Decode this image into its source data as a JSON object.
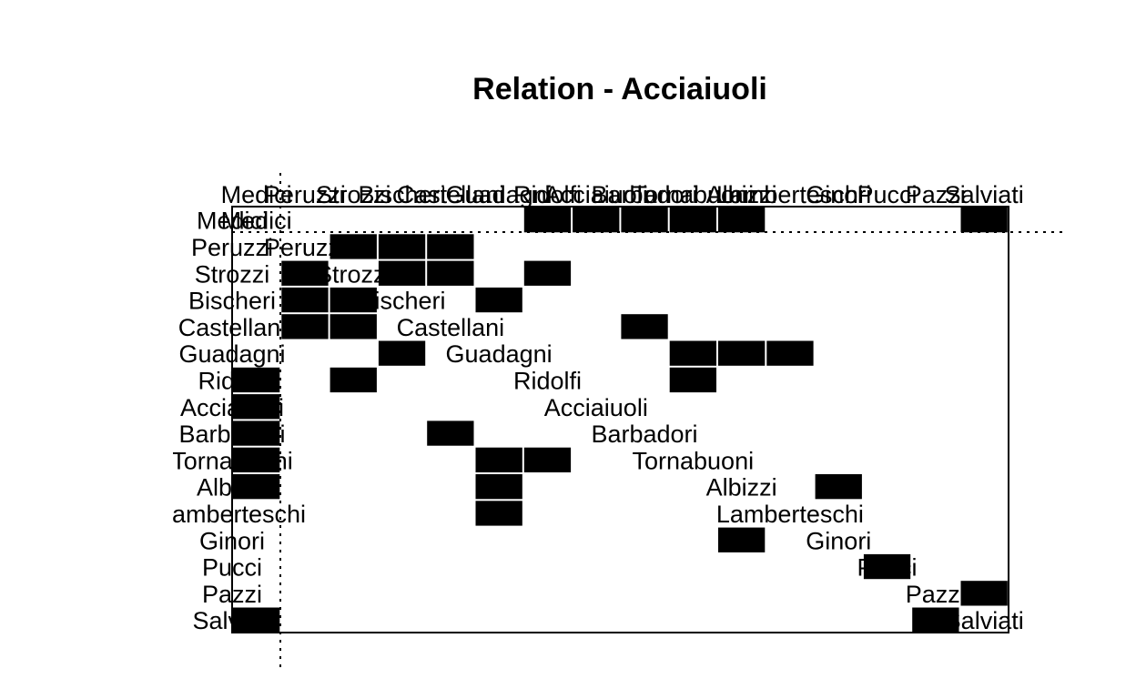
{
  "chart_data": {
    "type": "heatmap",
    "title": "Relation -  Acciaiuoli",
    "labels": [
      "Medici",
      "Peruzzi",
      "Strozzi",
      "Bischeri",
      "Castellani",
      "Guadagni",
      "Ridolfi",
      "Acciaiuoli",
      "Barbadori",
      "Tornabuoni",
      "Albizzi",
      "Lamberteschi",
      "Ginori",
      "Pucci",
      "Pazzi",
      "Salviati"
    ],
    "filled_cells": [
      [
        0,
        6
      ],
      [
        0,
        7
      ],
      [
        0,
        8
      ],
      [
        0,
        9
      ],
      [
        0,
        10
      ],
      [
        0,
        15
      ],
      [
        1,
        2
      ],
      [
        1,
        3
      ],
      [
        1,
        4
      ],
      [
        2,
        1
      ],
      [
        2,
        3
      ],
      [
        2,
        4
      ],
      [
        2,
        6
      ],
      [
        3,
        1
      ],
      [
        3,
        2
      ],
      [
        3,
        5
      ],
      [
        4,
        1
      ],
      [
        4,
        2
      ],
      [
        4,
        8
      ],
      [
        5,
        3
      ],
      [
        5,
        9
      ],
      [
        5,
        10
      ],
      [
        5,
        11
      ],
      [
        6,
        0
      ],
      [
        6,
        2
      ],
      [
        6,
        9
      ],
      [
        7,
        0
      ],
      [
        8,
        0
      ],
      [
        8,
        4
      ],
      [
        9,
        0
      ],
      [
        9,
        5
      ],
      [
        9,
        6
      ],
      [
        10,
        0
      ],
      [
        10,
        5
      ],
      [
        10,
        12
      ],
      [
        11,
        5
      ],
      [
        12,
        10
      ],
      [
        13,
        13
      ],
      [
        14,
        15
      ],
      [
        15,
        0
      ],
      [
        15,
        14
      ]
    ],
    "cell_color": "#000000",
    "grid": false,
    "reference_lines": "dotted"
  }
}
